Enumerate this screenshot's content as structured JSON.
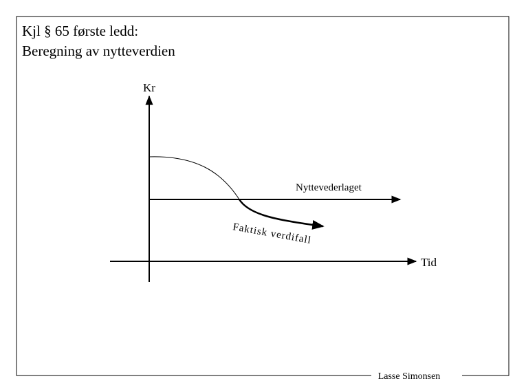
{
  "title": {
    "line1": "Kjl § 65 første ledd:",
    "line2": "Beregning av nytteverdien"
  },
  "diagram": {
    "y_axis_label": "Kr",
    "x_axis_label": "Tid",
    "line_label": "Nyttevederlaget",
    "curve_label": "Faktisk verdifall"
  },
  "footer": {
    "author": "Lasse Simonsen"
  }
}
